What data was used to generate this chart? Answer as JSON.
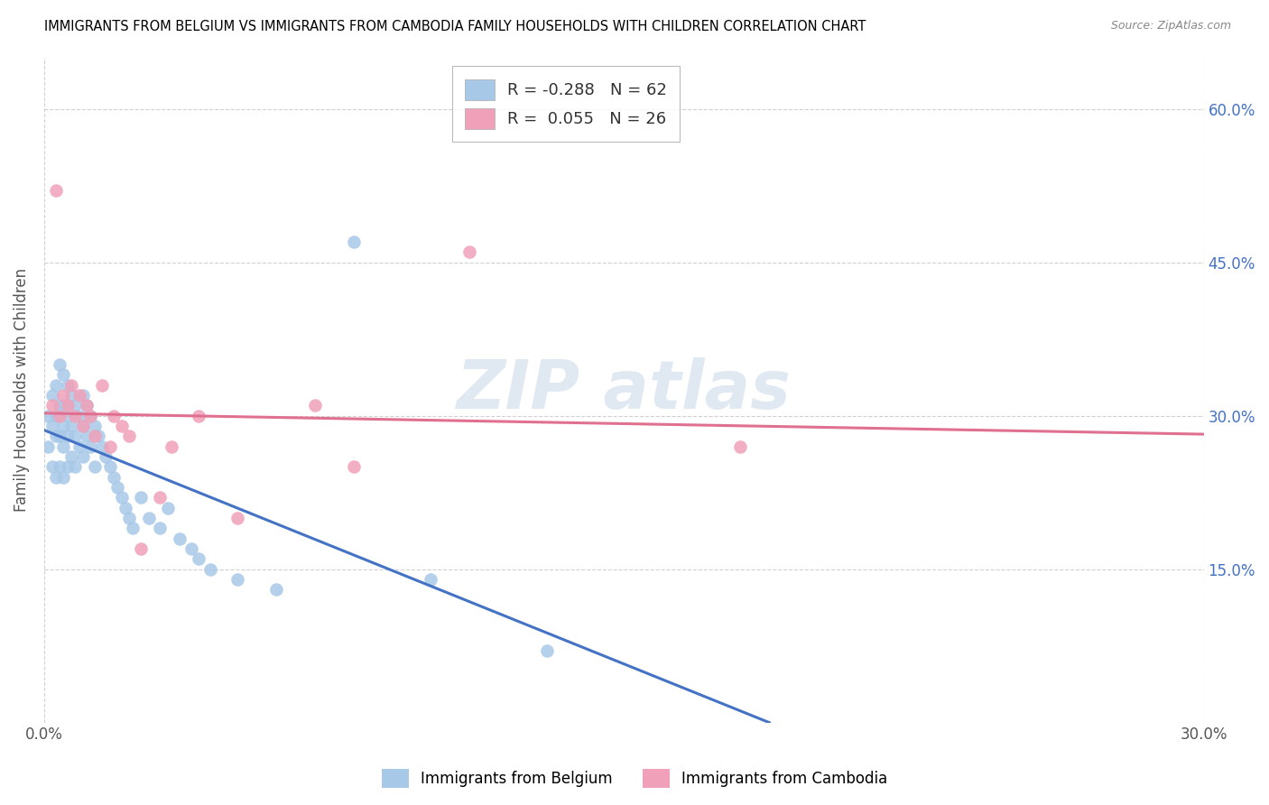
{
  "title": "IMMIGRANTS FROM BELGIUM VS IMMIGRANTS FROM CAMBODIA FAMILY HOUSEHOLDS WITH CHILDREN CORRELATION CHART",
  "source": "Source: ZipAtlas.com",
  "ylabel": "Family Households with Children",
  "xlim": [
    0.0,
    0.3
  ],
  "ylim": [
    0.0,
    0.65
  ],
  "belgium_color": "#a8c8e8",
  "cambodia_color": "#f0a0b8",
  "belgium_line_color": "#4472c4",
  "cambodia_line_color": "#e07090",
  "belgium_R": -0.288,
  "belgium_N": 62,
  "cambodia_R": 0.055,
  "cambodia_N": 26,
  "legend_label_1": "Immigrants from Belgium",
  "legend_label_2": "Immigrants from Cambodia",
  "belgium_scatter_x": [
    0.001,
    0.001,
    0.002,
    0.002,
    0.002,
    0.003,
    0.003,
    0.003,
    0.003,
    0.004,
    0.004,
    0.004,
    0.004,
    0.005,
    0.005,
    0.005,
    0.005,
    0.005,
    0.006,
    0.006,
    0.006,
    0.006,
    0.007,
    0.007,
    0.007,
    0.008,
    0.008,
    0.008,
    0.009,
    0.009,
    0.01,
    0.01,
    0.01,
    0.011,
    0.011,
    0.012,
    0.012,
    0.013,
    0.013,
    0.014,
    0.015,
    0.016,
    0.017,
    0.018,
    0.019,
    0.02,
    0.021,
    0.022,
    0.023,
    0.025,
    0.027,
    0.03,
    0.032,
    0.035,
    0.038,
    0.04,
    0.043,
    0.05,
    0.06,
    0.08,
    0.1,
    0.13
  ],
  "belgium_scatter_y": [
    0.3,
    0.27,
    0.32,
    0.29,
    0.25,
    0.33,
    0.3,
    0.28,
    0.24,
    0.35,
    0.31,
    0.28,
    0.25,
    0.34,
    0.31,
    0.29,
    0.27,
    0.24,
    0.33,
    0.3,
    0.28,
    0.25,
    0.32,
    0.29,
    0.26,
    0.31,
    0.28,
    0.25,
    0.3,
    0.27,
    0.32,
    0.29,
    0.26,
    0.31,
    0.28,
    0.3,
    0.27,
    0.29,
    0.25,
    0.28,
    0.27,
    0.26,
    0.25,
    0.24,
    0.23,
    0.22,
    0.21,
    0.2,
    0.19,
    0.22,
    0.2,
    0.19,
    0.21,
    0.18,
    0.17,
    0.16,
    0.15,
    0.14,
    0.13,
    0.47,
    0.14,
    0.07
  ],
  "cambodia_scatter_x": [
    0.002,
    0.003,
    0.004,
    0.005,
    0.006,
    0.007,
    0.008,
    0.009,
    0.01,
    0.011,
    0.012,
    0.013,
    0.015,
    0.017,
    0.018,
    0.02,
    0.022,
    0.025,
    0.03,
    0.033,
    0.04,
    0.05,
    0.07,
    0.08,
    0.11,
    0.18
  ],
  "cambodia_scatter_y": [
    0.31,
    0.52,
    0.3,
    0.32,
    0.31,
    0.33,
    0.3,
    0.32,
    0.29,
    0.31,
    0.3,
    0.28,
    0.33,
    0.27,
    0.3,
    0.29,
    0.28,
    0.17,
    0.22,
    0.27,
    0.3,
    0.2,
    0.31,
    0.25,
    0.46,
    0.27
  ]
}
